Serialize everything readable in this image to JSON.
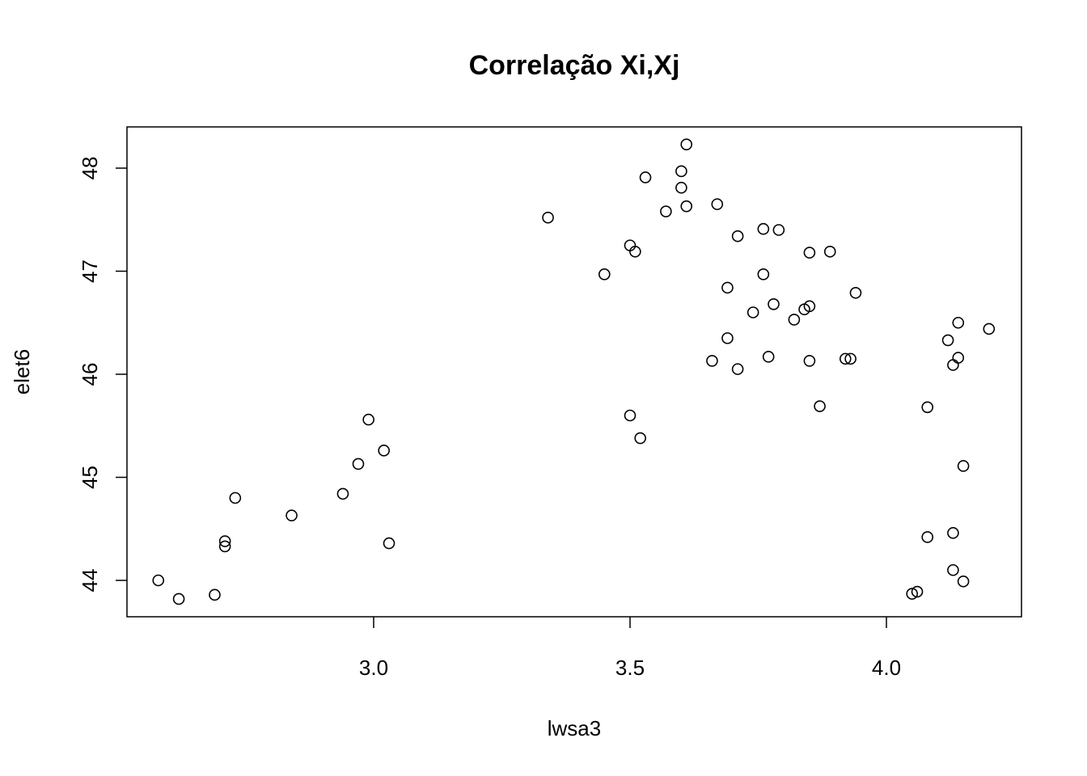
{
  "chart_data": {
    "type": "scatter",
    "title": "Correlação Xi,Xj",
    "xlabel": "lwsa3",
    "ylabel": "elet6",
    "xlim": [
      2.55,
      4.25
    ],
    "ylim": [
      43.65,
      48.4
    ],
    "xticks": [
      3.0,
      3.5,
      4.0
    ],
    "xtick_labels": [
      "3.0",
      "3.5",
      "4.0"
    ],
    "yticks": [
      44,
      45,
      46,
      47,
      48
    ],
    "ytick_labels": [
      "44",
      "45",
      "46",
      "47",
      "48"
    ],
    "grid": false,
    "points": [
      {
        "x": 2.58,
        "y": 44.0
      },
      {
        "x": 2.62,
        "y": 43.82
      },
      {
        "x": 2.69,
        "y": 43.86
      },
      {
        "x": 2.71,
        "y": 44.38
      },
      {
        "x": 2.71,
        "y": 44.33
      },
      {
        "x": 2.73,
        "y": 44.8
      },
      {
        "x": 2.84,
        "y": 44.63
      },
      {
        "x": 2.94,
        "y": 44.84
      },
      {
        "x": 2.97,
        "y": 45.13
      },
      {
        "x": 2.99,
        "y": 45.56
      },
      {
        "x": 3.02,
        "y": 45.26
      },
      {
        "x": 3.03,
        "y": 44.36
      },
      {
        "x": 3.34,
        "y": 47.52
      },
      {
        "x": 3.45,
        "y": 46.97
      },
      {
        "x": 3.5,
        "y": 47.25
      },
      {
        "x": 3.51,
        "y": 47.19
      },
      {
        "x": 3.53,
        "y": 47.91
      },
      {
        "x": 3.5,
        "y": 45.6
      },
      {
        "x": 3.52,
        "y": 45.38
      },
      {
        "x": 3.57,
        "y": 47.58
      },
      {
        "x": 3.6,
        "y": 47.97
      },
      {
        "x": 3.6,
        "y": 47.81
      },
      {
        "x": 3.61,
        "y": 48.23
      },
      {
        "x": 3.61,
        "y": 47.63
      },
      {
        "x": 3.67,
        "y": 47.65
      },
      {
        "x": 3.66,
        "y": 46.13
      },
      {
        "x": 3.69,
        "y": 46.84
      },
      {
        "x": 3.69,
        "y": 46.35
      },
      {
        "x": 3.71,
        "y": 47.34
      },
      {
        "x": 3.71,
        "y": 46.05
      },
      {
        "x": 3.74,
        "y": 46.6
      },
      {
        "x": 3.76,
        "y": 47.41
      },
      {
        "x": 3.76,
        "y": 46.97
      },
      {
        "x": 3.77,
        "y": 46.17
      },
      {
        "x": 3.78,
        "y": 46.68
      },
      {
        "x": 3.79,
        "y": 47.4
      },
      {
        "x": 3.82,
        "y": 46.53
      },
      {
        "x": 3.84,
        "y": 46.63
      },
      {
        "x": 3.85,
        "y": 46.66
      },
      {
        "x": 3.85,
        "y": 47.18
      },
      {
        "x": 3.85,
        "y": 46.13
      },
      {
        "x": 3.87,
        "y": 45.69
      },
      {
        "x": 3.89,
        "y": 47.19
      },
      {
        "x": 3.92,
        "y": 46.15
      },
      {
        "x": 3.93,
        "y": 46.15
      },
      {
        "x": 3.94,
        "y": 46.79
      },
      {
        "x": 4.05,
        "y": 43.87
      },
      {
        "x": 4.06,
        "y": 43.89
      },
      {
        "x": 4.08,
        "y": 45.68
      },
      {
        "x": 4.08,
        "y": 44.42
      },
      {
        "x": 4.12,
        "y": 46.33
      },
      {
        "x": 4.13,
        "y": 46.09
      },
      {
        "x": 4.13,
        "y": 44.46
      },
      {
        "x": 4.13,
        "y": 44.1
      },
      {
        "x": 4.14,
        "y": 46.5
      },
      {
        "x": 4.14,
        "y": 46.16
      },
      {
        "x": 4.15,
        "y": 45.11
      },
      {
        "x": 4.15,
        "y": 43.99
      },
      {
        "x": 4.2,
        "y": 46.44
      }
    ]
  }
}
